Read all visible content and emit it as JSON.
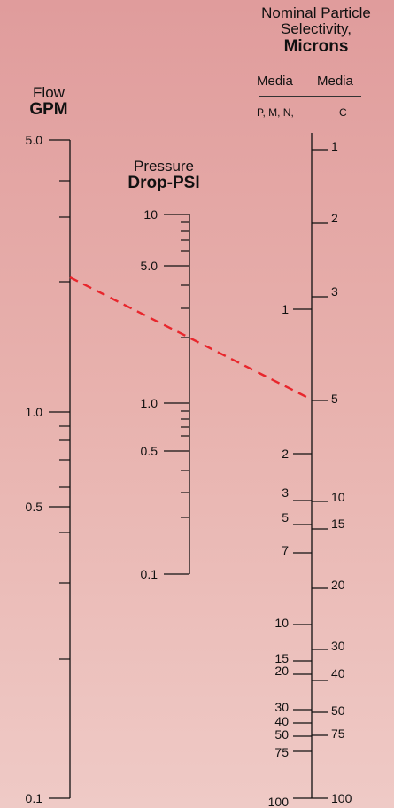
{
  "headers": {
    "flow": {
      "line1": "Flow",
      "line2": "GPM"
    },
    "pressure": {
      "line1": "Pressure",
      "line2": "Drop-PSI"
    },
    "micron": {
      "line1": "Nominal Particle",
      "line2": "Selectivity,",
      "line3": "Microns"
    },
    "media_left": "Media",
    "media_right": "Media",
    "media_left_sub": "P, M, N,",
    "media_right_sub": "C"
  },
  "colors": {
    "dashed_line": "#e8262c",
    "axis": "#111111"
  },
  "axes": {
    "flow": {
      "labels": [
        "5.0",
        "1.0",
        "0.5",
        "0.1"
      ]
    },
    "pressure": {
      "labels": [
        "10",
        "5.0",
        "1.0",
        "0.5",
        "0.1"
      ]
    },
    "micron_left": {
      "labels": [
        "1",
        "2",
        "3",
        "5",
        "7",
        "10",
        "15",
        "20",
        "30",
        "40",
        "50",
        "75",
        "100"
      ]
    },
    "micron_right": {
      "labels": [
        "1",
        "2",
        "3",
        "5",
        "10",
        "15",
        "20",
        "30",
        "40",
        "50",
        "75",
        "100"
      ]
    }
  }
}
